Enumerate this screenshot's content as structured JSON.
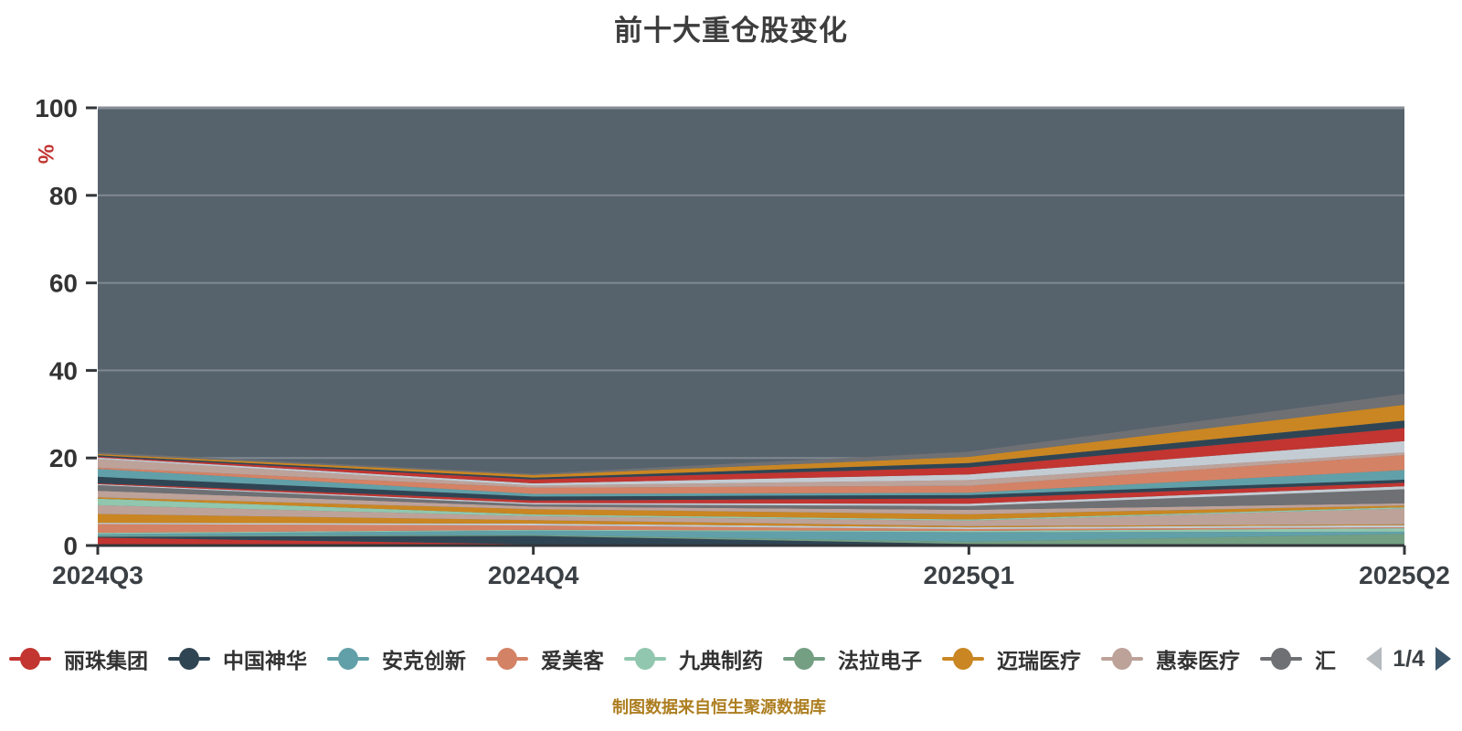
{
  "title": {
    "text": "前十大重仓股变化"
  },
  "y_axis": {
    "unit": "%",
    "min": 0,
    "max": 100,
    "ticks": [
      0,
      20,
      40,
      60,
      80,
      100
    ]
  },
  "x_axis": {
    "labels": [
      "2024Q3",
      "2024Q4",
      "2025Q1",
      "2025Q2"
    ]
  },
  "legend": {
    "items": [
      {
        "label": "丽珠集团",
        "color": "#c23531"
      },
      {
        "label": "中国神华",
        "color": "#2f4554"
      },
      {
        "label": "安克创新",
        "color": "#61a0a8"
      },
      {
        "label": "爱美客",
        "color": "#d48265"
      },
      {
        "label": "九典制药",
        "color": "#91c7ae"
      },
      {
        "label": "法拉电子",
        "color": "#749f83"
      },
      {
        "label": "迈瑞医疗",
        "color": "#ca8622"
      },
      {
        "label": "惠泰医疗",
        "color": "#bda29a"
      },
      {
        "label": "汇",
        "color": "#6e7074"
      }
    ],
    "pager": {
      "text": "1/4",
      "prev_enabled": false,
      "next_enabled": true
    }
  },
  "footer": {
    "text": "制图数据来自恒生聚源数据库"
  },
  "colors": {
    "plot_background": "#56626C",
    "grid_top_line": "#878e96",
    "grid_line": "rgba(255,255,255,0.25)",
    "axis_line": "#33363a",
    "axis_label": "#3b4045",
    "y_label": "#333333",
    "unit_accent": "#c23531",
    "title_text": "#3d3d3d",
    "footer_text": "#ad7e20",
    "pager_prev": "#b4babe",
    "pager_next": "#3b566b"
  },
  "chart_data": {
    "type": "area",
    "stacked": true,
    "title": "前十大重仓股变化",
    "xlabel": "",
    "ylabel": "%",
    "ylim": [
      0,
      100
    ],
    "grid": true,
    "legend_position": "bottom",
    "x": [
      "2024Q3",
      "2024Q4",
      "2025Q1",
      "2025Q2"
    ],
    "series": [
      {
        "name": "丽珠集团",
        "color": "#c23531",
        "values": [
          1.8,
          0.3,
          0.1,
          0.05
        ]
      },
      {
        "name": "中国神华",
        "color": "#2f4554",
        "values": [
          0.2,
          1.9,
          0.25,
          0.1
        ]
      },
      {
        "name": "法拉电子",
        "color": "#749f83",
        "values": [
          0.2,
          0.2,
          0.5,
          2.5
        ]
      },
      {
        "name": "安克创新",
        "color": "#61a0a8",
        "values": [
          0.4,
          1.0,
          2.2,
          0.5
        ]
      },
      {
        "name": "九典制药",
        "color": "#91c7ae",
        "values": [
          0.3,
          0.2,
          0.3,
          0.8
        ]
      },
      {
        "name": "爱美客",
        "color": "#d48265",
        "values": [
          2.0,
          1.0,
          0.4,
          0.2
        ]
      },
      {
        "name": "",
        "color": "#c4ccd3",
        "values": [
          0.3,
          0.4,
          0.4,
          0.5
        ]
      },
      {
        "name": "迈瑞医疗",
        "color": "#ca8622",
        "values": [
          2.0,
          0.8,
          0.3,
          0.2
        ]
      },
      {
        "name": "惠泰医疗",
        "color": "#bda29a",
        "values": [
          2.0,
          0.9,
          1.2,
          3.6
        ]
      },
      {
        "name": "",
        "color": "#91c7ae",
        "values": [
          1.5,
          0.4,
          0.3,
          0.3
        ]
      },
      {
        "name": "",
        "color": "#ca8622",
        "values": [
          0.3,
          1.2,
          1.2,
          0.4
        ]
      },
      {
        "name": "",
        "color": "#bda29a",
        "values": [
          1.5,
          0.6,
          1.0,
          0.5
        ]
      },
      {
        "name": "汇",
        "color": "#6e7074",
        "values": [
          1.3,
          0.5,
          0.9,
          3.2
        ]
      },
      {
        "name": "",
        "color": "#c4ccd3",
        "values": [
          0.2,
          0.3,
          0.5,
          0.7
        ]
      },
      {
        "name": "",
        "color": "#c23531",
        "values": [
          0.2,
          0.6,
          1.2,
          0.8
        ]
      },
      {
        "name": "",
        "color": "#2f4554",
        "values": [
          1.5,
          0.9,
          0.8,
          0.7
        ]
      },
      {
        "name": "",
        "color": "#61a0a8",
        "values": [
          1.8,
          0.6,
          0.5,
          2.2
        ]
      },
      {
        "name": "",
        "color": "#d48265",
        "values": [
          0.3,
          1.4,
          1.6,
          3.4
        ]
      },
      {
        "name": "",
        "color": "#bda29a",
        "values": [
          2.0,
          0.5,
          1.3,
          0.6
        ]
      },
      {
        "name": "",
        "color": "#c4ccd3",
        "values": [
          0.3,
          0.5,
          1.3,
          2.6
        ]
      },
      {
        "name": "",
        "color": "#c23531",
        "values": [
          0.2,
          0.9,
          1.6,
          3.0
        ]
      },
      {
        "name": "",
        "color": "#2f4554",
        "values": [
          0.3,
          0.4,
          1.0,
          1.7
        ]
      },
      {
        "name": "",
        "color": "#ca8622",
        "values": [
          0.3,
          0.6,
          1.4,
          3.6
        ]
      },
      {
        "name": "",
        "color": "#6e7074",
        "values": [
          0.4,
          0.3,
          1.2,
          2.5
        ]
      }
    ]
  }
}
